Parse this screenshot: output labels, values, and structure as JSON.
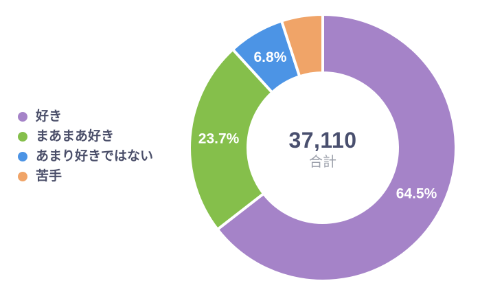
{
  "chart_data": {
    "type": "pie",
    "subtype": "donut",
    "title": "",
    "total": "37,110",
    "total_label": "合計",
    "legend_position": "left",
    "start_angle_deg": 0,
    "direction": "clockwise",
    "separator_color": "#FFFFFF",
    "segments": [
      {
        "label": "好き",
        "percent": 64.5,
        "percent_label": "64.5%",
        "color": "#A583C8"
      },
      {
        "label": "まあまあ好き",
        "percent": 23.7,
        "percent_label": "23.7%",
        "color": "#85BF4B"
      },
      {
        "label": "あまり好きではない",
        "percent": 6.8,
        "percent_label": "6.8%",
        "color": "#4C94E5"
      },
      {
        "label": "苦手",
        "percent": 5.0,
        "percent_label": "",
        "color": "#F0A468"
      }
    ]
  },
  "colors": {
    "background": "#FFFFFF",
    "percent_label_text": "#FFFFFF",
    "center_number": "#494F6E",
    "center_caption": "#9CA0AB",
    "legend_text": "#4A4E69"
  }
}
